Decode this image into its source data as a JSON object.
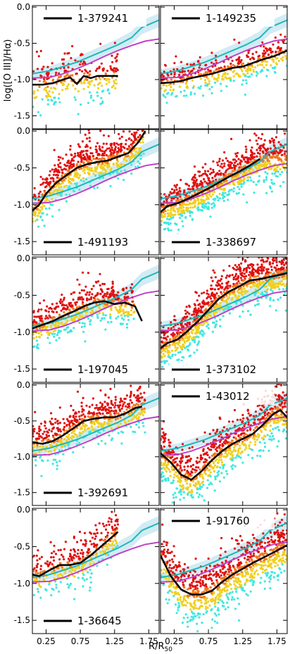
{
  "figure": {
    "ylabel": "log([O III]/Hα)",
    "xlabel": "R/R",
    "xlabel_sub": "50",
    "ytick_labels": [
      "0.0",
      "-0.5",
      "-1.0",
      "-1.5"
    ],
    "ytick_values": [
      0.0,
      -0.5,
      -1.0,
      -1.5
    ],
    "xtick_labels": [
      "0.25",
      "0.75",
      "1.25",
      "1.75"
    ],
    "xtick_values": [
      0.25,
      0.75,
      1.25,
      1.75
    ]
  },
  "chart_data": [
    {
      "type": "scatter",
      "id": "1-379241",
      "legend": "1-379241",
      "legend_pos": "top",
      "xlim": [
        0.05,
        1.9
      ],
      "ylim": [
        -1.68,
        0.02
      ],
      "profile": {
        "x": [
          0.05,
          0.2,
          0.35,
          0.5,
          0.6,
          0.7,
          0.8,
          0.9,
          1.0,
          1.1,
          1.2,
          1.3
        ],
        "y": [
          -1.07,
          -1.07,
          -1.05,
          -1.0,
          -0.97,
          -1.06,
          -0.95,
          -0.98,
          -0.95,
          -0.95,
          -0.95,
          -0.95
        ]
      },
      "cloud": {
        "xmin": 0.05,
        "xmax": 1.3,
        "center": -0.98,
        "spread": 0.17,
        "n": 260
      },
      "ref1": {
        "x": [
          0.05,
          0.3,
          0.5,
          0.7,
          0.9,
          1.1,
          1.3,
          1.5,
          1.65,
          1.9
        ],
        "y": [
          -0.92,
          -0.88,
          -0.82,
          -0.76,
          -0.68,
          -0.6,
          -0.52,
          -0.42,
          -0.28,
          -0.18
        ]
      },
      "ref2": {
        "x": [
          0.05,
          0.3,
          0.5,
          0.7,
          0.9,
          1.1,
          1.3,
          1.5,
          1.7,
          1.9
        ],
        "y": [
          -0.98,
          -0.97,
          -0.92,
          -0.85,
          -0.77,
          -0.68,
          -0.6,
          -0.53,
          -0.47,
          -0.44
        ]
      }
    },
    {
      "type": "scatter",
      "id": "1-149235",
      "legend": "1-149235",
      "legend_pos": "top",
      "xlim": [
        0.05,
        1.9
      ],
      "ylim": [
        -1.68,
        0.02
      ],
      "profile": {
        "x": [
          0.05,
          0.2,
          0.35,
          0.5,
          0.65,
          0.8,
          0.95,
          1.1,
          1.25,
          1.4,
          1.55,
          1.7,
          1.9
        ],
        "y": [
          -1.05,
          -1.04,
          -1.02,
          -0.98,
          -0.95,
          -0.92,
          -0.88,
          -0.84,
          -0.82,
          -0.77,
          -0.72,
          -0.68,
          -0.6
        ]
      },
      "cloud": {
        "xmin": 0.05,
        "xmax": 1.9,
        "center": -0.85,
        "spread": 0.12,
        "n": 420
      },
      "ref1": {
        "x": [
          0.05,
          0.3,
          0.5,
          0.7,
          0.9,
          1.1,
          1.3,
          1.5,
          1.65,
          1.9
        ],
        "y": [
          -0.92,
          -0.88,
          -0.82,
          -0.76,
          -0.68,
          -0.6,
          -0.52,
          -0.42,
          -0.28,
          -0.18
        ]
      },
      "ref2": {
        "x": [
          0.05,
          0.3,
          0.5,
          0.7,
          0.9,
          1.1,
          1.3,
          1.5,
          1.7,
          1.9
        ],
        "y": [
          -0.98,
          -0.97,
          -0.92,
          -0.85,
          -0.77,
          -0.68,
          -0.6,
          -0.53,
          -0.47,
          -0.44
        ]
      }
    },
    {
      "type": "scatter",
      "id": "1-491193",
      "legend": "1-491193",
      "legend_pos": "bottom",
      "xlim": [
        0.05,
        1.9
      ],
      "ylim": [
        -1.68,
        0.02
      ],
      "profile": {
        "x": [
          0.05,
          0.15,
          0.25,
          0.4,
          0.55,
          0.7,
          0.85,
          1.0,
          1.15,
          1.3,
          1.45,
          1.6,
          1.7
        ],
        "y": [
          -1.08,
          -1.0,
          -0.85,
          -0.7,
          -0.6,
          -0.5,
          -0.45,
          -0.42,
          -0.4,
          -0.35,
          -0.3,
          -0.15,
          0.0
        ]
      },
      "cloud": {
        "xmin": 0.05,
        "xmax": 1.7,
        "center": -0.5,
        "spread": 0.16,
        "n": 720
      },
      "ref1": {
        "x": [
          0.05,
          0.3,
          0.5,
          0.7,
          0.9,
          1.1,
          1.3,
          1.5,
          1.65,
          1.9
        ],
        "y": [
          -0.92,
          -0.88,
          -0.82,
          -0.76,
          -0.68,
          -0.6,
          -0.52,
          -0.42,
          -0.28,
          -0.18
        ]
      },
      "ref2": {
        "x": [
          0.05,
          0.3,
          0.5,
          0.7,
          0.9,
          1.1,
          1.3,
          1.5,
          1.7,
          1.9
        ],
        "y": [
          -0.98,
          -0.97,
          -0.92,
          -0.85,
          -0.77,
          -0.68,
          -0.6,
          -0.53,
          -0.47,
          -0.44
        ]
      }
    },
    {
      "type": "scatter",
      "id": "1-338697",
      "legend": "1-338697",
      "legend_pos": "bottom",
      "xlim": [
        0.05,
        1.9
      ],
      "ylim": [
        -1.68,
        0.02
      ],
      "profile": {
        "x": [
          0.05,
          0.15,
          0.3,
          0.45,
          0.6,
          0.75,
          0.9,
          1.05,
          1.2,
          1.35,
          1.5
        ],
        "y": [
          -1.1,
          -1.02,
          -0.98,
          -0.92,
          -0.85,
          -0.78,
          -0.7,
          -0.62,
          -0.55,
          -0.47,
          -0.38
        ]
      },
      "cloud": {
        "xmin": 0.05,
        "xmax": 1.9,
        "center": -0.65,
        "spread": 0.15,
        "n": 950
      },
      "ref1": {
        "x": [
          0.05,
          0.3,
          0.5,
          0.7,
          0.9,
          1.1,
          1.3,
          1.5,
          1.65,
          1.9
        ],
        "y": [
          -0.92,
          -0.88,
          -0.82,
          -0.76,
          -0.68,
          -0.6,
          -0.52,
          -0.42,
          -0.28,
          -0.18
        ]
      },
      "ref2": {
        "x": [
          0.05,
          0.3,
          0.5,
          0.7,
          0.9,
          1.1,
          1.3,
          1.5,
          1.7,
          1.9
        ],
        "y": [
          -0.98,
          -0.97,
          -0.92,
          -0.85,
          -0.77,
          -0.68,
          -0.6,
          -0.53,
          -0.47,
          -0.44
        ]
      }
    },
    {
      "type": "scatter",
      "id": "1-197045",
      "legend": "1-197045",
      "legend_pos": "bottom",
      "xlim": [
        0.05,
        1.9
      ],
      "ylim": [
        -1.68,
        0.02
      ],
      "profile": {
        "x": [
          0.05,
          0.2,
          0.35,
          0.5,
          0.65,
          0.8,
          0.95,
          1.1,
          1.25,
          1.4,
          1.55,
          1.65
        ],
        "y": [
          -0.95,
          -0.9,
          -0.85,
          -0.78,
          -0.72,
          -0.65,
          -0.6,
          -0.58,
          -0.62,
          -0.6,
          -0.65,
          -0.85
        ]
      },
      "cloud": {
        "xmin": 0.05,
        "xmax": 1.55,
        "center": -0.72,
        "spread": 0.15,
        "n": 520
      },
      "ref1": {
        "x": [
          0.05,
          0.3,
          0.5,
          0.7,
          0.9,
          1.1,
          1.3,
          1.5,
          1.65,
          1.9
        ],
        "y": [
          -0.92,
          -0.88,
          -0.82,
          -0.76,
          -0.68,
          -0.6,
          -0.52,
          -0.42,
          -0.28,
          -0.18
        ]
      },
      "ref2": {
        "x": [
          0.05,
          0.3,
          0.5,
          0.7,
          0.9,
          1.1,
          1.3,
          1.5,
          1.7,
          1.9
        ],
        "y": [
          -0.98,
          -0.97,
          -0.92,
          -0.85,
          -0.77,
          -0.68,
          -0.6,
          -0.53,
          -0.47,
          -0.44
        ]
      }
    },
    {
      "type": "scatter",
      "id": "1-373102",
      "legend": "1-373102",
      "legend_pos": "bottom",
      "xlim": [
        0.05,
        1.9
      ],
      "ylim": [
        -1.68,
        0.02
      ],
      "profile": {
        "x": [
          0.05,
          0.15,
          0.3,
          0.45,
          0.6,
          0.75,
          0.9,
          1.05,
          1.2,
          1.35,
          1.5,
          1.65,
          1.8,
          1.9
        ],
        "y": [
          -1.22,
          -1.15,
          -1.1,
          -0.98,
          -0.85,
          -0.7,
          -0.55,
          -0.45,
          -0.38,
          -0.3,
          -0.28,
          -0.25,
          -0.22,
          -0.2
        ]
      },
      "cloud": {
        "xmin": 0.05,
        "xmax": 1.9,
        "center": -0.5,
        "spread": 0.16,
        "n": 1050
      },
      "ref1": {
        "x": [
          0.05,
          0.3,
          0.5,
          0.7,
          0.9,
          1.1,
          1.3,
          1.5,
          1.65,
          1.9
        ],
        "y": [
          -0.92,
          -0.88,
          -0.82,
          -0.76,
          -0.68,
          -0.6,
          -0.52,
          -0.42,
          -0.28,
          -0.18
        ]
      },
      "ref2": {
        "x": [
          0.05,
          0.3,
          0.5,
          0.7,
          0.9,
          1.1,
          1.3,
          1.5,
          1.7,
          1.9
        ],
        "y": [
          -0.98,
          -0.97,
          -0.92,
          -0.85,
          -0.77,
          -0.68,
          -0.6,
          -0.53,
          -0.47,
          -0.44
        ]
      }
    },
    {
      "type": "scatter",
      "id": "1-392691",
      "legend": "1-392691",
      "legend_pos": "bottom",
      "xlim": [
        0.05,
        1.9
      ],
      "ylim": [
        -1.68,
        0.02
      ],
      "profile": {
        "x": [
          0.05,
          0.2,
          0.35,
          0.5,
          0.65,
          0.8,
          0.95,
          1.1,
          1.25,
          1.4,
          1.55,
          1.65
        ],
        "y": [
          -0.8,
          -0.82,
          -0.78,
          -0.7,
          -0.6,
          -0.5,
          -0.47,
          -0.45,
          -0.45,
          -0.4,
          -0.32,
          -0.3
        ]
      },
      "cloud": {
        "xmin": 0.05,
        "xmax": 1.7,
        "center": -0.58,
        "spread": 0.15,
        "n": 620
      },
      "ref1": {
        "x": [
          0.05,
          0.3,
          0.5,
          0.7,
          0.9,
          1.1,
          1.3,
          1.5,
          1.65,
          1.9
        ],
        "y": [
          -0.92,
          -0.88,
          -0.82,
          -0.76,
          -0.68,
          -0.6,
          -0.52,
          -0.42,
          -0.28,
          -0.18
        ]
      },
      "ref2": {
        "x": [
          0.05,
          0.3,
          0.5,
          0.7,
          0.9,
          1.1,
          1.3,
          1.5,
          1.7,
          1.9
        ],
        "y": [
          -0.98,
          -0.97,
          -0.92,
          -0.85,
          -0.77,
          -0.68,
          -0.6,
          -0.53,
          -0.47,
          -0.44
        ]
      }
    },
    {
      "type": "scatter",
      "id": "1-43012",
      "legend": "1-43012",
      "legend_pos": "top",
      "xlim": [
        0.05,
        1.9
      ],
      "ylim": [
        -1.68,
        0.02
      ],
      "profile": {
        "x": [
          0.05,
          0.2,
          0.35,
          0.5,
          0.65,
          0.8,
          0.95,
          1.1,
          1.25,
          1.4,
          1.55,
          1.7,
          1.8,
          1.9
        ],
        "y": [
          -0.95,
          -1.08,
          -1.25,
          -1.32,
          -1.2,
          -1.05,
          -0.92,
          -0.82,
          -0.75,
          -0.68,
          -0.55,
          -0.4,
          -0.35,
          -0.45
        ]
      },
      "cloud": {
        "xmin": 0.05,
        "xmax": 1.9,
        "center": -0.85,
        "spread": 0.18,
        "n": 880
      },
      "ref1": {
        "x": [
          0.05,
          0.3,
          0.5,
          0.7,
          0.9,
          1.1,
          1.3,
          1.5,
          1.65,
          1.9
        ],
        "y": [
          -0.92,
          -0.88,
          -0.82,
          -0.76,
          -0.68,
          -0.6,
          -0.52,
          -0.42,
          -0.28,
          -0.18
        ]
      },
      "ref2": {
        "x": [
          0.05,
          0.3,
          0.5,
          0.7,
          0.9,
          1.1,
          1.3,
          1.5,
          1.7,
          1.9
        ],
        "y": [
          -0.98,
          -0.97,
          -0.92,
          -0.85,
          -0.77,
          -0.68,
          -0.6,
          -0.53,
          -0.47,
          -0.44
        ]
      }
    },
    {
      "type": "scatter",
      "id": "1-36645",
      "legend": "1-36645",
      "legend_pos": "bottom",
      "xlim": [
        0.05,
        1.9
      ],
      "ylim": [
        -1.68,
        0.02
      ],
      "profile": {
        "x": [
          0.05,
          0.15,
          0.3,
          0.45,
          0.6,
          0.75,
          0.9,
          1.05,
          1.15,
          1.3
        ],
        "y": [
          -0.88,
          -0.9,
          -0.82,
          -0.75,
          -0.75,
          -0.72,
          -0.62,
          -0.5,
          -0.42,
          -0.3
        ]
      },
      "cloud": {
        "xmin": 0.05,
        "xmax": 1.3,
        "center": -0.72,
        "spread": 0.16,
        "n": 360
      },
      "ref1": {
        "x": [
          0.05,
          0.3,
          0.5,
          0.7,
          0.9,
          1.1,
          1.3,
          1.5,
          1.65,
          1.9
        ],
        "y": [
          -0.92,
          -0.88,
          -0.82,
          -0.76,
          -0.68,
          -0.6,
          -0.52,
          -0.42,
          -0.28,
          -0.18
        ]
      },
      "ref2": {
        "x": [
          0.05,
          0.3,
          0.5,
          0.7,
          0.9,
          1.1,
          1.3,
          1.5,
          1.7,
          1.9
        ],
        "y": [
          -0.98,
          -0.97,
          -0.92,
          -0.85,
          -0.77,
          -0.68,
          -0.6,
          -0.53,
          -0.47,
          -0.44
        ]
      }
    },
    {
      "type": "scatter",
      "id": "1-91760",
      "legend": "1-91760",
      "legend_pos": "top",
      "xlim": [
        0.05,
        1.9
      ],
      "ylim": [
        -1.68,
        0.02
      ],
      "profile": {
        "x": [
          0.05,
          0.2,
          0.35,
          0.5,
          0.65,
          0.8,
          0.95,
          1.1,
          1.25,
          1.4,
          1.55,
          1.7,
          1.9
        ],
        "y": [
          -0.62,
          -0.9,
          -1.08,
          -1.15,
          -1.15,
          -1.1,
          -0.98,
          -0.88,
          -0.8,
          -0.72,
          -0.65,
          -0.58,
          -0.48
        ]
      },
      "cloud": {
        "xmin": 0.05,
        "xmax": 1.9,
        "center": -0.9,
        "spread": 0.2,
        "n": 960
      },
      "ref1": {
        "x": [
          0.05,
          0.3,
          0.5,
          0.7,
          0.9,
          1.1,
          1.3,
          1.5,
          1.65,
          1.9
        ],
        "y": [
          -0.92,
          -0.88,
          -0.82,
          -0.76,
          -0.68,
          -0.6,
          -0.52,
          -0.42,
          -0.28,
          -0.18
        ]
      },
      "ref2": {
        "x": [
          0.05,
          0.3,
          0.5,
          0.7,
          0.9,
          1.1,
          1.3,
          1.5,
          1.7,
          1.9
        ],
        "y": [
          -0.98,
          -0.97,
          -0.92,
          -0.85,
          -0.77,
          -0.68,
          -0.6,
          -0.53,
          -0.47,
          -0.44
        ]
      }
    }
  ],
  "colors": {
    "profile": "#000000",
    "ref1": "#20b8b8",
    "ref1_band": "#bfe3f0",
    "ref2": "#c040c8",
    "scatter_high": "#e01010",
    "scatter_mid": "#f07820",
    "scatter_low": "#f0d020",
    "scatter_lowest": "#40e8e0"
  }
}
